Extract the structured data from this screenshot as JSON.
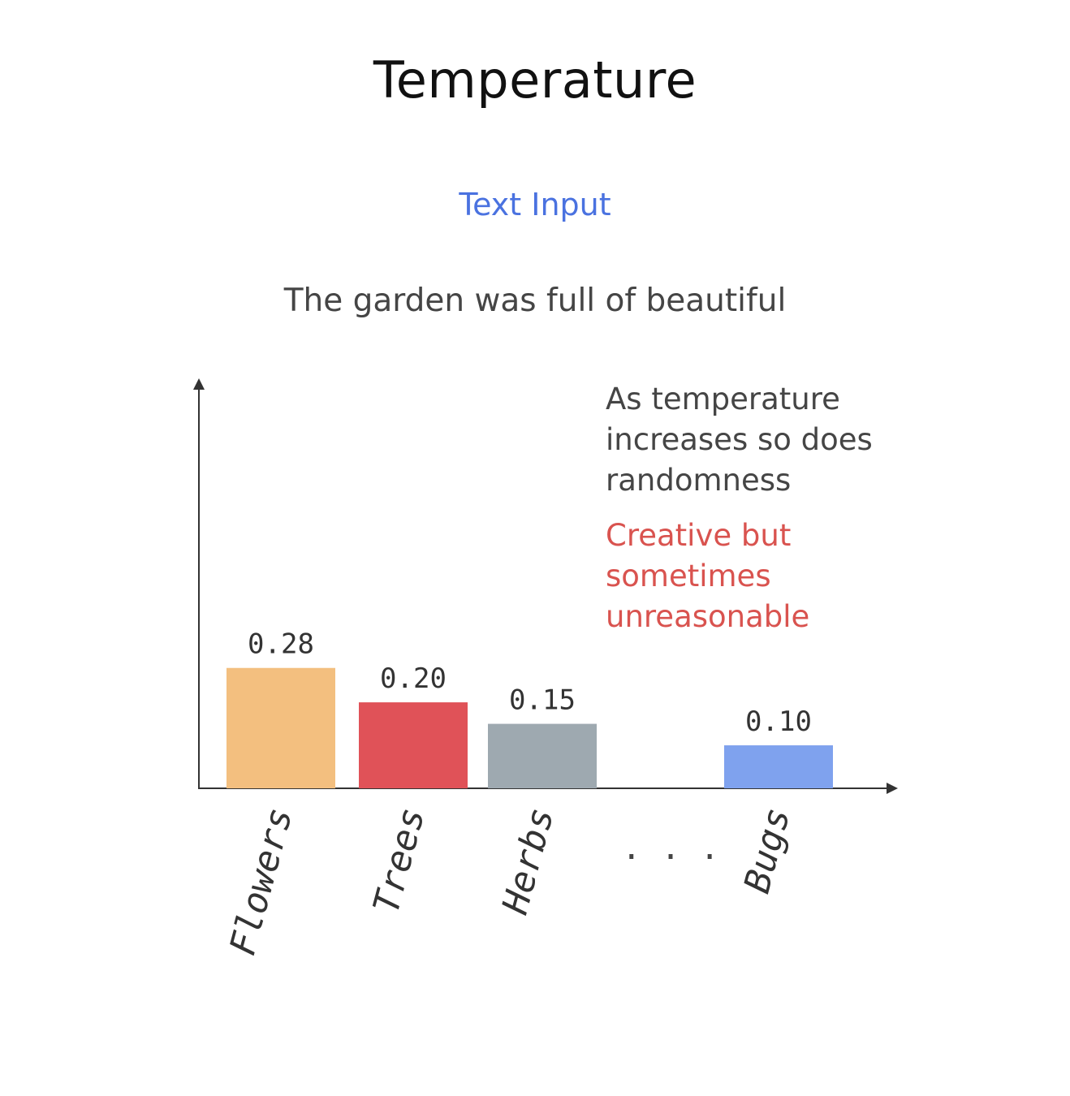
{
  "title": "Temperature",
  "subtitle": "Text Input",
  "prompt": "The garden was full of beautiful",
  "annotation": {
    "lines": [
      "As temperature",
      "increases so does",
      "randomness"
    ]
  },
  "highlight": {
    "lines": [
      "Creative but",
      "sometimes",
      "unreasonable"
    ]
  },
  "ellipsis": ". . .",
  "colors": {
    "title": "#111111",
    "subtitle": "#4a72e0",
    "text": "#454545",
    "highlight": "#d9534f",
    "axis": "#333333"
  },
  "chart_data": {
    "type": "bar",
    "categories": [
      "Flowers",
      "Trees",
      "Herbs",
      "Bugs"
    ],
    "values": [
      0.28,
      0.2,
      0.15,
      0.1
    ],
    "value_labels": [
      "0.28",
      "0.20",
      "0.15",
      "0.10"
    ],
    "colors": [
      "#f3bf7f",
      "#e05258",
      "#9ea9b0",
      "#7fa2ee"
    ],
    "xlabel": "",
    "ylabel": "",
    "ylim": [
      0,
      0.95
    ],
    "grid": false,
    "legend": "none"
  }
}
